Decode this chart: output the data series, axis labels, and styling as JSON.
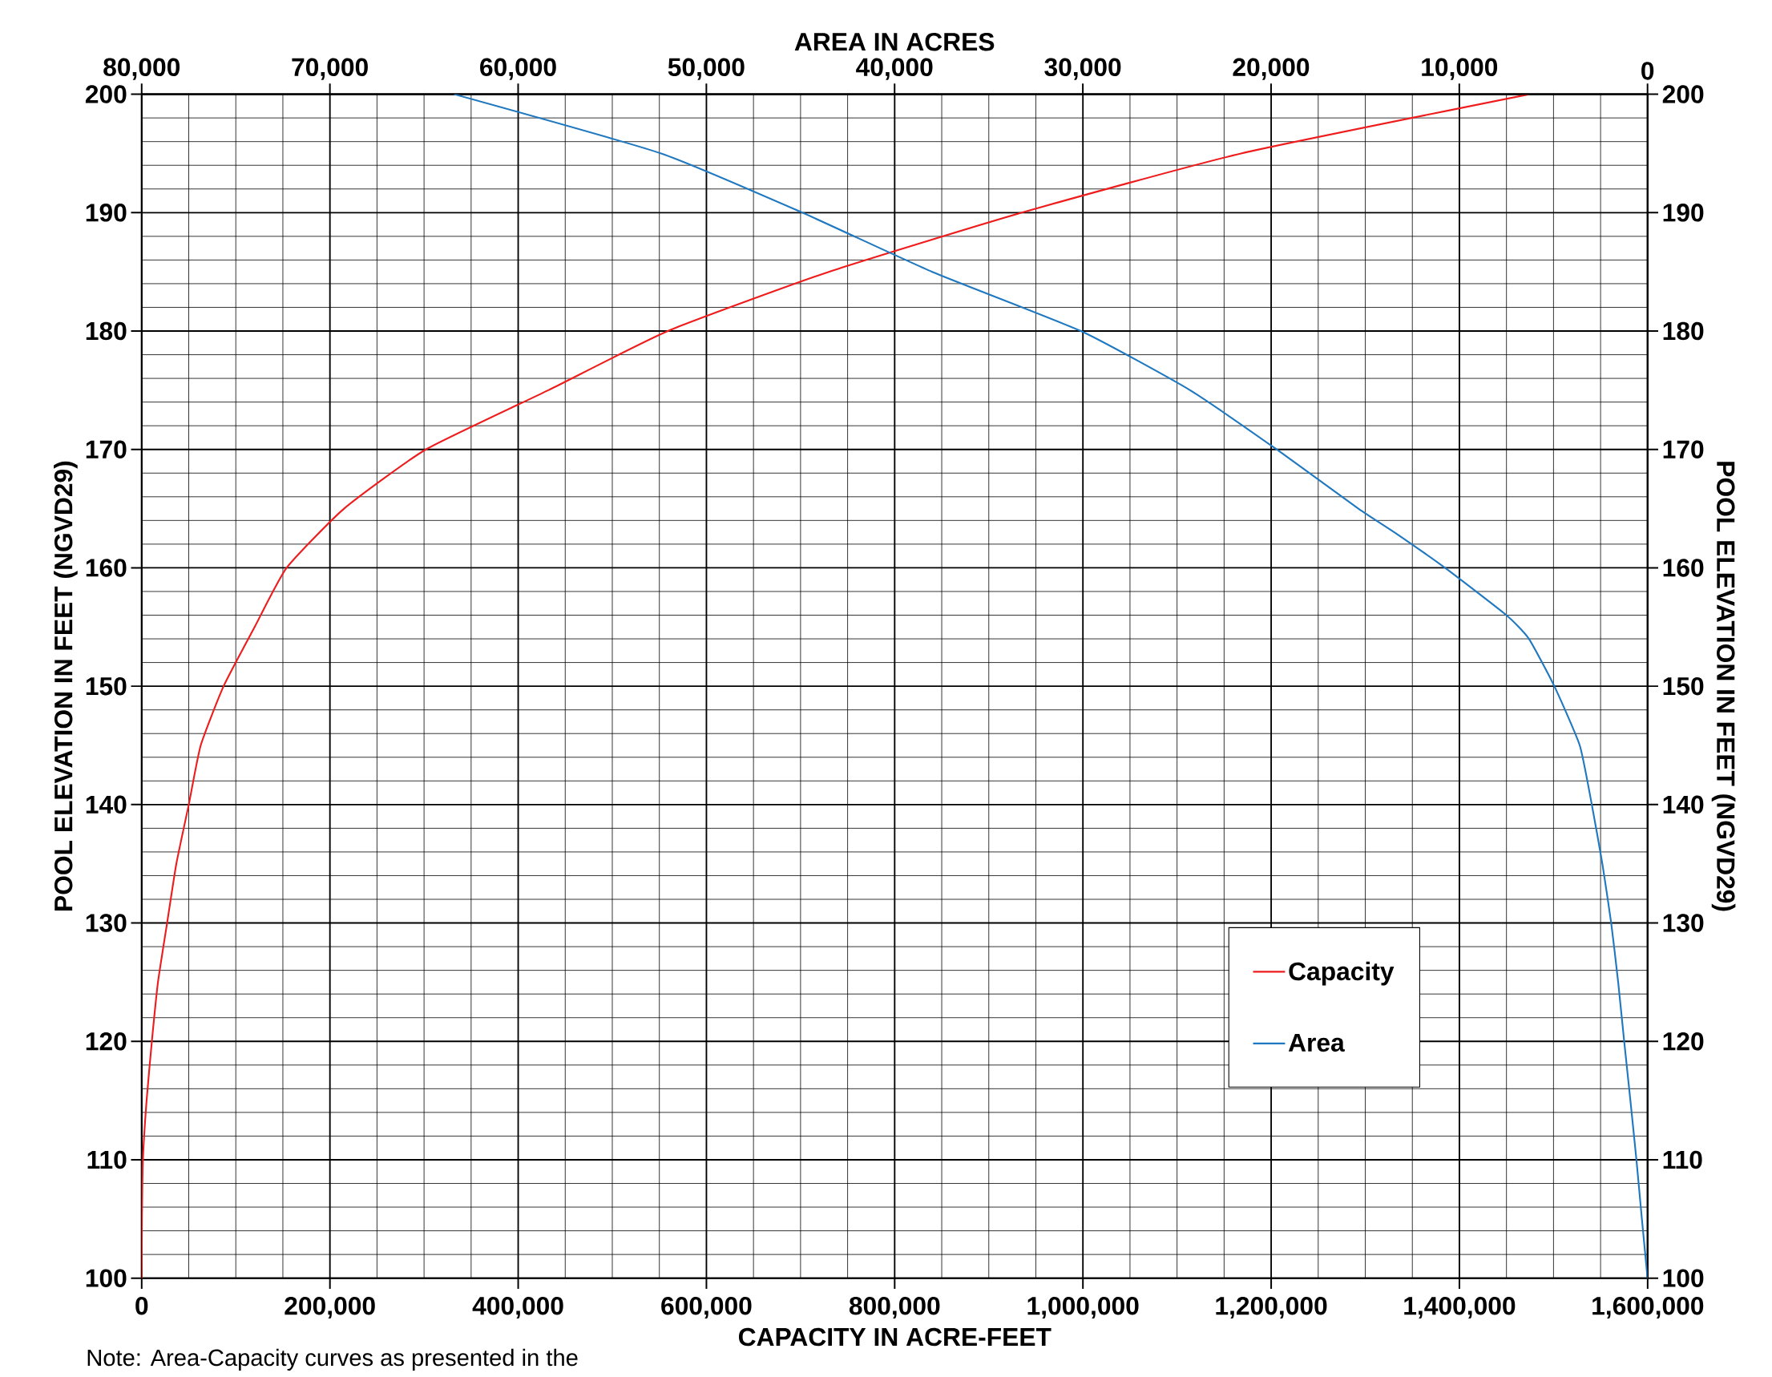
{
  "chart_data": {
    "type": "line",
    "xlabel": "CAPACITY IN ACRE-FEET",
    "x2label": "AREA IN ACRES",
    "ylabel": "POOL ELEVATION IN FEET (NGVD29)",
    "y2label": "POOL ELEVATION IN FEET (NGVD29)",
    "xlim": [
      0,
      1600000
    ],
    "xticks": [
      0,
      {
        "value": 200000,
        "label": "200,000"
      },
      {
        "value": 400000,
        "label": "400,000"
      },
      {
        "value": 600000,
        "label": "600,000"
      },
      {
        "value": 800000,
        "label": "800,000"
      },
      {
        "value": 1000000,
        "label": "1,000,000"
      },
      {
        "value": 1200000,
        "label": "1,200,000"
      },
      {
        "value": 1400000,
        "label": "1,400,000"
      },
      {
        "value": 1600000,
        "label": "1,600,000"
      }
    ],
    "x2lim": [
      80000,
      0
    ],
    "x2ticks": [
      {
        "value": 80000,
        "label": "80,000"
      },
      {
        "value": 70000,
        "label": "70,000"
      },
      {
        "value": 60000,
        "label": "60,000"
      },
      {
        "value": 50000,
        "label": "50,000"
      },
      {
        "value": 40000,
        "label": "40,000"
      },
      {
        "value": 30000,
        "label": "30,000"
      },
      {
        "value": 20000,
        "label": "20,000"
      },
      {
        "value": 10000,
        "label": "10,000"
      },
      0
    ],
    "ylim": [
      100,
      200
    ],
    "yticks": [
      100,
      110,
      120,
      130,
      140,
      150,
      160,
      170,
      180,
      190,
      200
    ],
    "y2lim": [
      100,
      200
    ],
    "y2ticks": [
      100,
      110,
      120,
      130,
      140,
      150,
      160,
      170,
      180,
      190,
      200
    ],
    "grid": true,
    "legend": "bottom right",
    "marker": "none",
    "line_style": "solid",
    "series": [
      {
        "name": "Capacity",
        "color": "#ee1c1c",
        "x": [
          0,
          300,
          1300,
          5200,
          10800,
          17300,
          27000,
          36800,
          50000,
          62700,
          87000,
          120000,
          154000,
          215000,
          302000,
          432000,
          559000,
          730000,
          935000,
          1168000,
          1474000
        ],
        "values": [
          100,
          105,
          110,
          115,
          120,
          125,
          130,
          135,
          140,
          145,
          150,
          155,
          160,
          165,
          170,
          175,
          180,
          185,
          190,
          195,
          200
        ]
      },
      {
        "name": "Area",
        "color": "#1f78c0",
        "axis": "x2",
        "x": [
          0,
          300,
          590,
          910,
          1240,
          1560,
          1930,
          2400,
          2960,
          3600,
          4950,
          6300,
          7500,
          10760,
          13450,
          15360,
          19700,
          24300,
          30100,
          38000,
          44900,
          52400,
          63400
        ],
        "values": [
          100,
          105,
          110,
          115,
          120,
          125,
          130,
          135,
          140,
          145,
          150,
          154,
          156,
          160,
          163,
          165,
          170,
          175,
          180,
          185,
          190,
          195,
          200
        ]
      }
    ],
    "annotations": [
      "Note: Area-Capacity curves as presented in the"
    ]
  }
}
